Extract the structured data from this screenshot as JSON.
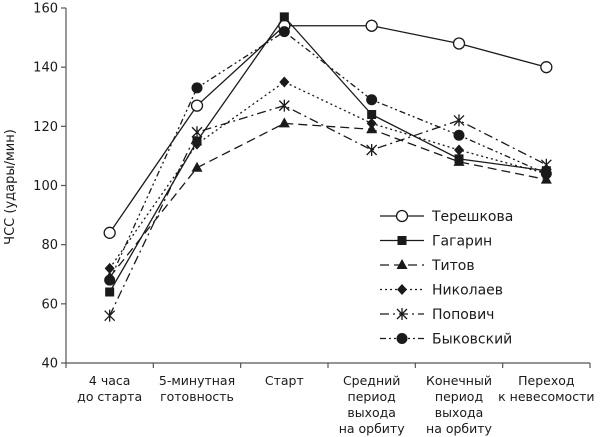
{
  "chart_data": {
    "type": "line",
    "title": "",
    "xlabel": "",
    "ylabel": "ЧСС (удары/мин)",
    "ylim": [
      40,
      160
    ],
    "yticks": [
      40,
      60,
      80,
      100,
      120,
      140,
      160
    ],
    "grid": false,
    "legend_position": "right-center",
    "categories": [
      [
        "4 часа",
        "до старта"
      ],
      [
        "5-минутная",
        "готовность"
      ],
      [
        "Старт"
      ],
      [
        "Средний",
        "период",
        "выхода",
        "на орбиту"
      ],
      [
        "Конечный",
        "период",
        "выхода",
        "на орбиту"
      ],
      [
        "Переход",
        "к невесомости"
      ]
    ],
    "series": [
      {
        "name": "Терешкова",
        "marker": "open-circle",
        "dash": "",
        "values": [
          84,
          127,
          154,
          154,
          148,
          140
        ]
      },
      {
        "name": "Гагарин",
        "marker": "filled-square",
        "dash": "",
        "values": [
          64,
          115,
          157,
          124,
          109,
          105
        ]
      },
      {
        "name": "Титов",
        "marker": "filled-triangle",
        "dash": "9,5",
        "values": [
          69,
          106,
          121,
          119,
          108,
          102
        ]
      },
      {
        "name": "Николаев",
        "marker": "filled-diamond",
        "dash": "2,3",
        "values": [
          72,
          114,
          135,
          121,
          112,
          104
        ]
      },
      {
        "name": "Попович",
        "marker": "asterisk",
        "dash": "9,4,2,4",
        "values": [
          56,
          118,
          127,
          112,
          122,
          107
        ]
      },
      {
        "name": "Быковский",
        "marker": "filled-circle",
        "dash": "6,3,2,3,2,3",
        "values": [
          68,
          133,
          152,
          129,
          117,
          104
        ]
      }
    ]
  }
}
